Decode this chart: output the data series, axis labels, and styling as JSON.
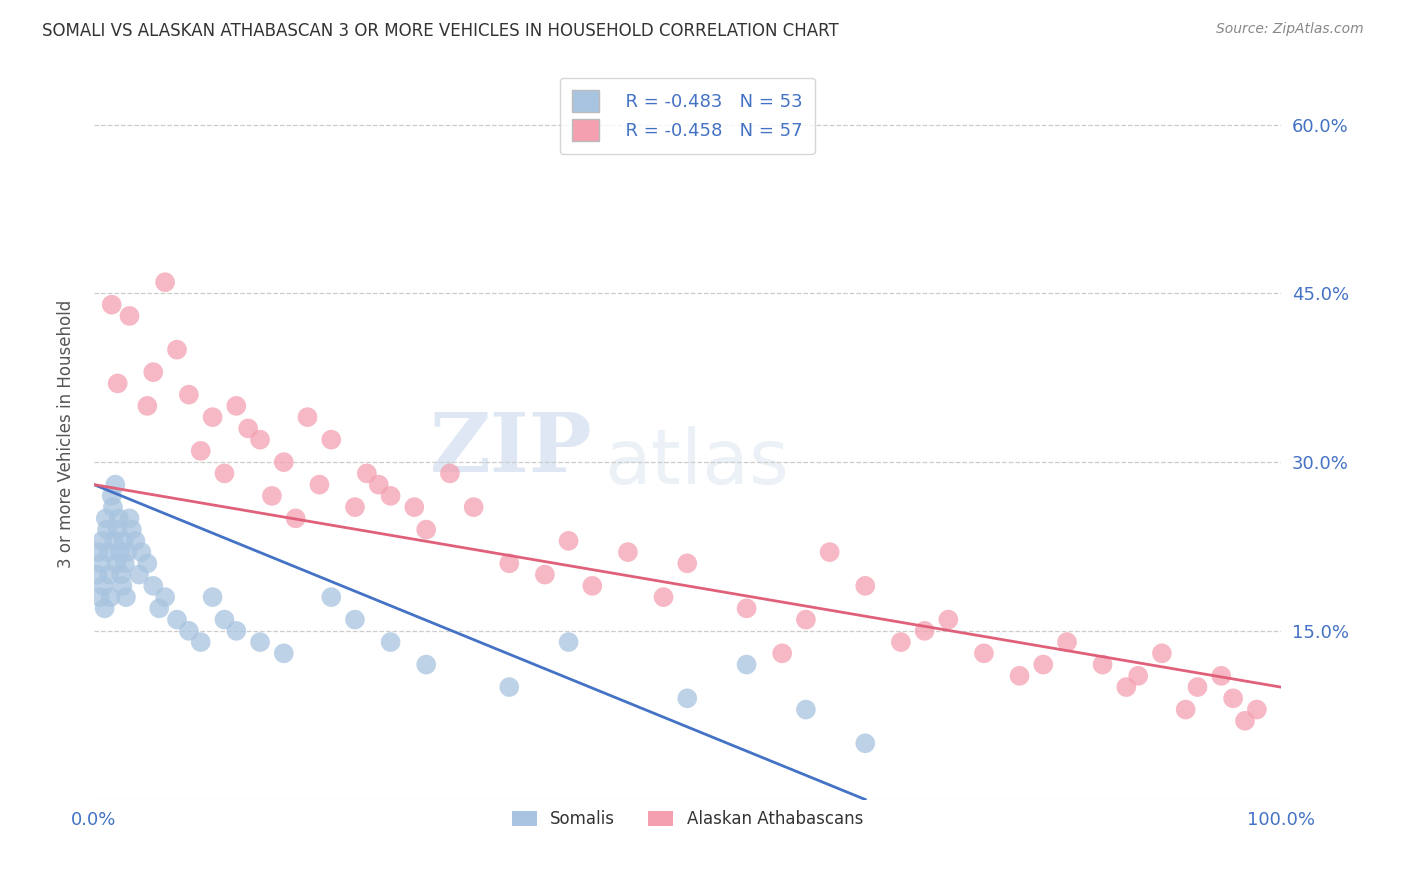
{
  "title": "SOMALI VS ALASKAN ATHABASCAN 3 OR MORE VEHICLES IN HOUSEHOLD CORRELATION CHART",
  "source": "Source: ZipAtlas.com",
  "ylabel": "3 or more Vehicles in Household",
  "xlim": [
    0,
    100
  ],
  "ylim": [
    0,
    65
  ],
  "yticks": [
    0,
    15,
    30,
    45,
    60
  ],
  "ytick_labels_right": [
    "",
    "15.0%",
    "30.0%",
    "45.0%",
    "60.0%"
  ],
  "somali_color": "#a8c4e0",
  "athabascan_color": "#f4a0b0",
  "somali_line_color": "#4472c4",
  "athabascan_line_color": "#e0607a",
  "somali_R": -0.483,
  "somali_N": 53,
  "athabascan_R": -0.458,
  "athabascan_N": 57,
  "legend_label_somali": "Somalis",
  "legend_label_athabascan": "Alaskan Athabascans",
  "watermark_zip": "ZIP",
  "watermark_atlas": "atlas",
  "somali_line_x0": 0,
  "somali_line_y0": 28.0,
  "somali_line_x1": 65,
  "somali_line_y1": 0.0,
  "athabascan_line_x0": 0,
  "athabascan_line_y0": 28.0,
  "athabascan_line_x1": 100,
  "athabascan_line_y1": 10.0,
  "somali_scatter_x": [
    0.3,
    0.4,
    0.5,
    0.6,
    0.7,
    0.8,
    0.9,
    1.0,
    1.1,
    1.2,
    1.3,
    1.4,
    1.5,
    1.6,
    1.7,
    1.8,
    1.9,
    2.0,
    2.1,
    2.2,
    2.3,
    2.4,
    2.5,
    2.6,
    2.7,
    2.8,
    3.0,
    3.2,
    3.5,
    3.8,
    4.0,
    4.5,
    5.0,
    5.5,
    6.0,
    7.0,
    8.0,
    9.0,
    10.0,
    11.0,
    12.0,
    14.0,
    16.0,
    20.0,
    22.0,
    25.0,
    28.0,
    35.0,
    40.0,
    50.0,
    55.0,
    60.0,
    65.0
  ],
  "somali_scatter_y": [
    20,
    22,
    18,
    21,
    23,
    19,
    17,
    25,
    24,
    22,
    20,
    18,
    27,
    26,
    23,
    28,
    21,
    24,
    25,
    22,
    20,
    19,
    23,
    21,
    18,
    22,
    25,
    24,
    23,
    20,
    22,
    21,
    19,
    17,
    18,
    16,
    15,
    14,
    18,
    16,
    15,
    14,
    13,
    18,
    16,
    14,
    12,
    10,
    14,
    9,
    12,
    8,
    5
  ],
  "athabascan_scatter_x": [
    1.5,
    2.0,
    3.0,
    4.5,
    5.0,
    6.0,
    7.0,
    8.0,
    9.0,
    10.0,
    11.0,
    12.0,
    13.0,
    14.0,
    15.0,
    16.0,
    17.0,
    18.0,
    19.0,
    20.0,
    22.0,
    23.0,
    24.0,
    25.0,
    27.0,
    28.0,
    30.0,
    32.0,
    35.0,
    38.0,
    40.0,
    42.0,
    45.0,
    48.0,
    50.0,
    55.0,
    58.0,
    60.0,
    62.0,
    65.0,
    68.0,
    70.0,
    72.0,
    75.0,
    78.0,
    80.0,
    82.0,
    85.0,
    87.0,
    88.0,
    90.0,
    92.0,
    93.0,
    95.0,
    96.0,
    97.0,
    98.0
  ],
  "athabascan_scatter_y": [
    44,
    37,
    43,
    35,
    38,
    46,
    40,
    36,
    31,
    34,
    29,
    35,
    33,
    32,
    27,
    30,
    25,
    34,
    28,
    32,
    26,
    29,
    28,
    27,
    26,
    24,
    29,
    26,
    21,
    20,
    23,
    19,
    22,
    18,
    21,
    17,
    13,
    16,
    22,
    19,
    14,
    15,
    16,
    13,
    11,
    12,
    14,
    12,
    10,
    11,
    13,
    8,
    10,
    11,
    9,
    7,
    8
  ]
}
